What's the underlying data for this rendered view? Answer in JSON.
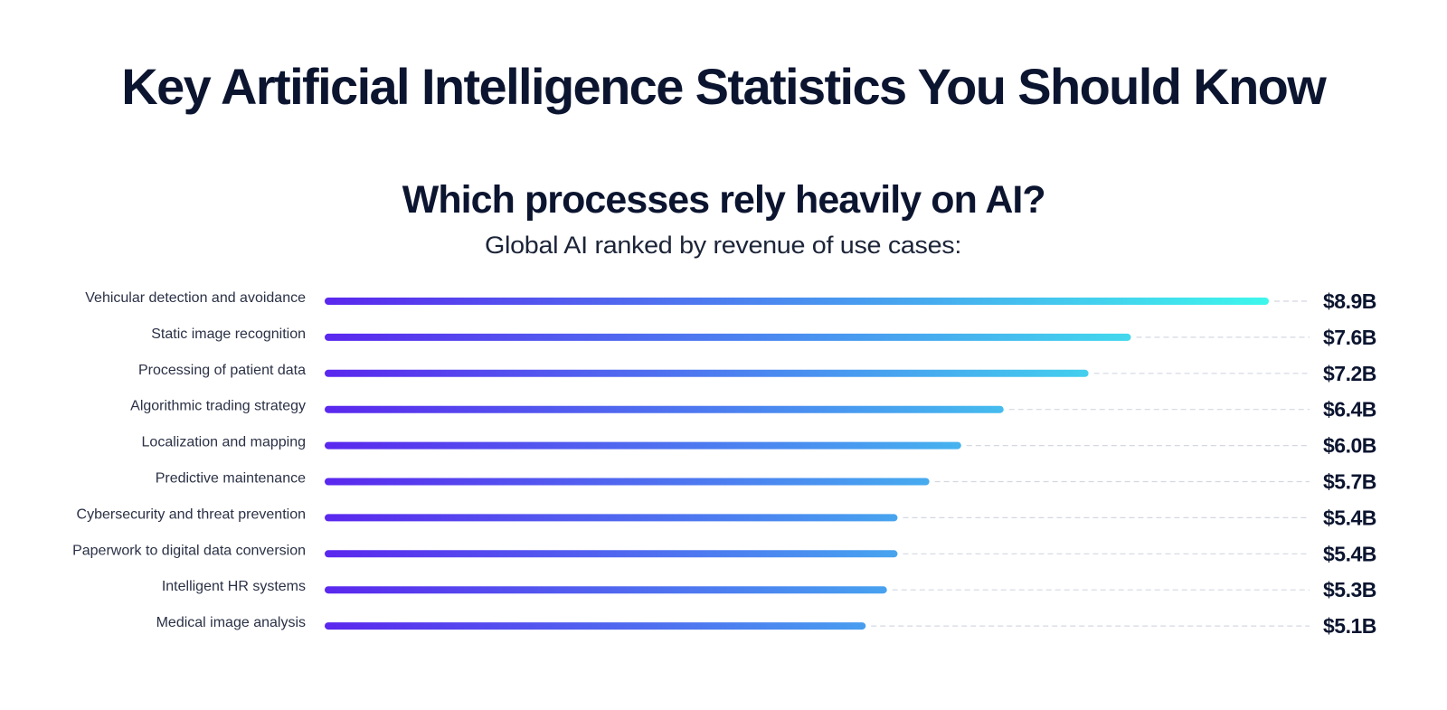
{
  "header": {
    "title": "Key Artificial Intelligence Statistics You Should Know"
  },
  "chart_data": {
    "type": "bar",
    "orientation": "horizontal",
    "title": "Which processes rely heavily on AI?",
    "subtitle": "Global AI ranked by revenue of use cases:",
    "xlabel": "",
    "ylabel": "",
    "unit": "billion USD",
    "value_format": "$%.1fB",
    "xlim": [
      0,
      8.9
    ],
    "grid": false,
    "legend": "none",
    "categories": [
      "Vehicular detection and avoidance",
      "Static image recognition",
      "Processing of patient data",
      "Algorithmic trading strategy",
      "Localization and mapping",
      "Predictive maintenance",
      "Cybersecurity and threat prevention",
      "Paperwork to digital data conversion",
      "Intelligent HR systems",
      "Medical image analysis"
    ],
    "values": [
      8.9,
      7.6,
      7.2,
      6.4,
      6.0,
      5.7,
      5.4,
      5.4,
      5.3,
      5.1
    ],
    "value_labels": [
      "$8.9B",
      "$7.6B",
      "$7.2B",
      "$6.4B",
      "$6.0B",
      "$5.7B",
      "$5.4B",
      "$5.4B",
      "$5.3B",
      "$5.1B"
    ],
    "colors": {
      "gradient_start": "#5a27ee",
      "gradient_mid": "#4a8ef0",
      "gradient_end": "#3ef7ec",
      "leader_line": "#d3d8e2",
      "text_dark": "#0c1530",
      "label_text": "#2b3146"
    }
  }
}
